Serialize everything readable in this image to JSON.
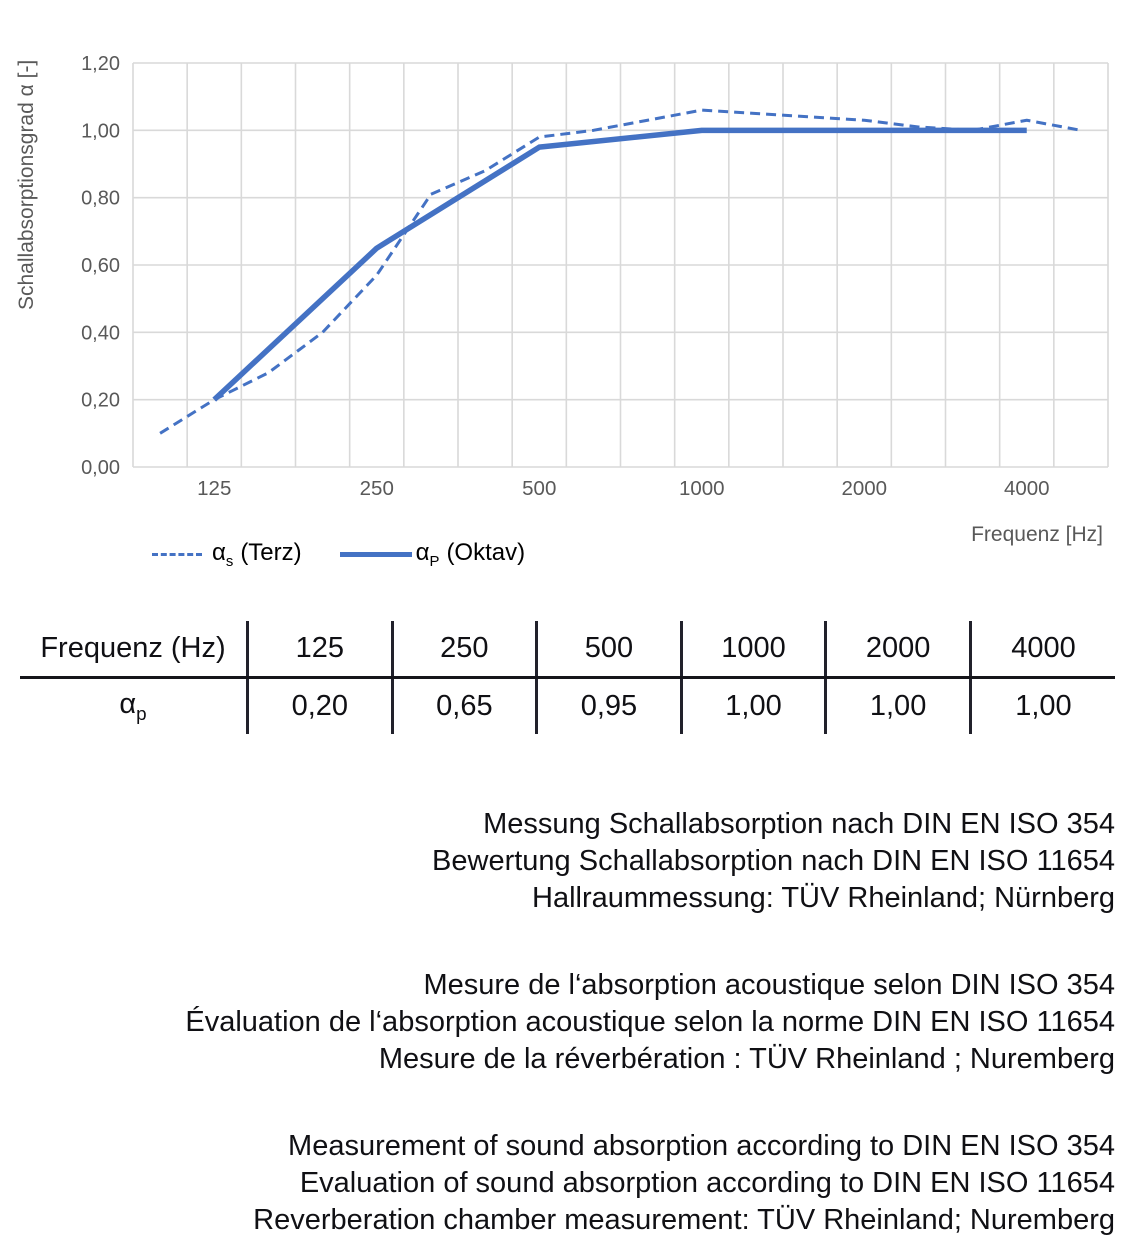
{
  "chart_data": {
    "type": "line",
    "title": "",
    "xlabel": "Frequenz [Hz]",
    "ylabel": "Schallabsorptionsgrad α [-]",
    "x_scale": "logarithmic (third-octave bands, equal spacing)",
    "x_bands": [
      100,
      125,
      160,
      200,
      250,
      315,
      400,
      500,
      630,
      800,
      1000,
      1250,
      1600,
      2000,
      2500,
      3150,
      4000,
      5000
    ],
    "x_tick_labels": [
      "125",
      "250",
      "500",
      "1000",
      "2000",
      "4000"
    ],
    "y_tick_labels": [
      "0,00",
      "0,20",
      "0,40",
      "0,60",
      "0,80",
      "1,00",
      "1,20"
    ],
    "ylim": [
      0,
      1.2
    ],
    "grid": true,
    "legend_position": "bottom-left",
    "series": [
      {
        "name": "αs (Terz)",
        "symbol": "α",
        "subscript": "s",
        "label_text": "(Terz)",
        "style": "dashed",
        "x": [
          100,
          125,
          160,
          200,
          250,
          315,
          400,
          500,
          630,
          800,
          1000,
          1250,
          1600,
          2000,
          2500,
          3150,
          4000,
          5000
        ],
        "values": [
          0.1,
          0.2,
          0.28,
          0.4,
          0.57,
          0.81,
          0.88,
          0.98,
          1.0,
          1.03,
          1.06,
          1.05,
          1.04,
          1.03,
          1.01,
          1.0,
          1.03,
          1.0
        ]
      },
      {
        "name": "αP (Oktav)",
        "symbol": "α",
        "subscript": "P",
        "label_text": "(Oktav)",
        "style": "solid",
        "x": [
          125,
          250,
          500,
          1000,
          2000,
          4000
        ],
        "values": [
          0.2,
          0.65,
          0.95,
          1.0,
          1.0,
          1.0
        ]
      }
    ],
    "colors": {
      "line": "#4472C4",
      "grid": "#D9D9D9",
      "axis_text": "#595959"
    }
  },
  "table": {
    "header": [
      "Frequenz (Hz)",
      "125",
      "250",
      "500",
      "1000",
      "2000",
      "4000"
    ],
    "row_label": {
      "symbol": "α",
      "subscript": "p"
    },
    "values": [
      "0,20",
      "0,65",
      "0,95",
      "1,00",
      "1,00",
      "1,00"
    ]
  },
  "texts": {
    "de": [
      "Messung Schallabsorption nach DIN EN ISO 354",
      "Bewertung Schallabsorption nach DIN EN ISO 11654",
      "Hallraummessung: TÜV Rheinland; Nürnberg"
    ],
    "fr": [
      "Mesure de l‘absorption acoustique selon DIN ISO 354",
      "Évaluation de l‘absorption acoustique selon la norme DIN EN ISO 11654",
      "Mesure de la réverbération : TÜV Rheinland ; Nuremberg"
    ],
    "en": [
      "Measurement of sound absorption according to DIN EN ISO 354",
      "Evaluation of sound absorption according to DIN EN ISO 11654",
      "Reverberation chamber measurement: TÜV Rheinland; Nuremberg"
    ]
  }
}
